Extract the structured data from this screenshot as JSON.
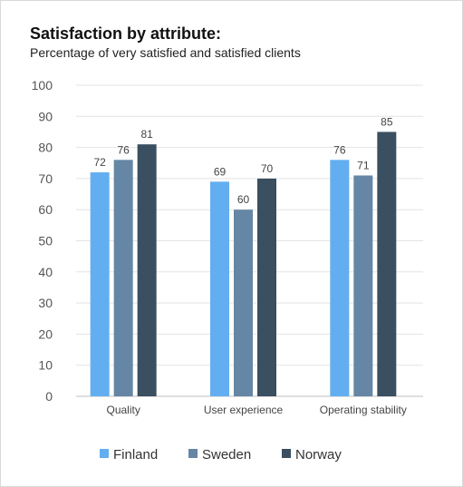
{
  "chart_data": {
    "type": "bar",
    "title": "Satisfaction by attribute:",
    "subtitle": "Percentage of very satisfied and satisfied clients",
    "categories": [
      "Quality",
      "User experience",
      "Operating stability"
    ],
    "series": [
      {
        "name": "Finland",
        "values": [
          72,
          69,
          76
        ],
        "color": "#63aef0"
      },
      {
        "name": "Sweden",
        "values": [
          76,
          60,
          71
        ],
        "color": "#6586a5"
      },
      {
        "name": "Norway",
        "values": [
          81,
          70,
          85
        ],
        "color": "#3a4f60"
      }
    ],
    "ylim": [
      0,
      100
    ],
    "yticks": [
      0,
      10,
      20,
      30,
      40,
      50,
      60,
      70,
      80,
      90,
      100
    ],
    "grid": true,
    "legend": "bottom-center",
    "xlabel": "",
    "ylabel": ""
  }
}
